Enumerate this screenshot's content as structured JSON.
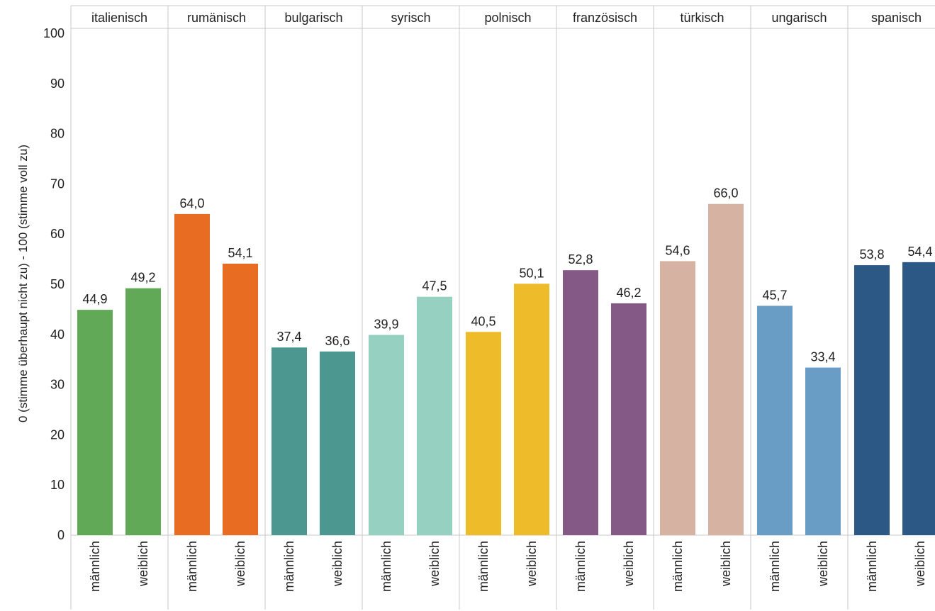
{
  "chart_data": {
    "type": "bar",
    "ylabel": "0 (stimme überhaupt nicht zu) - 100 (stimme voll zu)",
    "xlabel": "",
    "ylim": [
      0,
      100
    ],
    "yticks": [
      0,
      10,
      20,
      30,
      40,
      50,
      60,
      70,
      80,
      90,
      100
    ],
    "grid": false,
    "legend": "none",
    "subcategories": [
      "männlich",
      "weiblich"
    ],
    "groups": [
      {
        "name": "italienisch",
        "color": "#62A957",
        "values": [
          44.9,
          49.2
        ],
        "labels": [
          "44,9",
          "49,2"
        ]
      },
      {
        "name": "rumänisch",
        "color": "#E96C23",
        "values": [
          64.0,
          54.1
        ],
        "labels": [
          "64,0",
          "54,1"
        ]
      },
      {
        "name": "bulgarisch",
        "color": "#4C9890",
        "values": [
          37.4,
          36.6
        ],
        "labels": [
          "37,4",
          "36,6"
        ]
      },
      {
        "name": "syrisch",
        "color": "#95D0C0",
        "values": [
          39.9,
          47.5
        ],
        "labels": [
          "39,9",
          "47,5"
        ]
      },
      {
        "name": "polnisch",
        "color": "#EEBB2A",
        "values": [
          40.5,
          50.1
        ],
        "labels": [
          "40,5",
          "50,1"
        ]
      },
      {
        "name": "französisch",
        "color": "#845985",
        "values": [
          52.8,
          46.2
        ],
        "labels": [
          "52,8",
          "46,2"
        ]
      },
      {
        "name": "türkisch",
        "color": "#D5B2A2",
        "values": [
          54.6,
          66.0
        ],
        "labels": [
          "54,6",
          "66,0"
        ]
      },
      {
        "name": "ungarisch",
        "color": "#6A9DC6",
        "values": [
          45.7,
          33.4
        ],
        "labels": [
          "45,7",
          "33,4"
        ]
      },
      {
        "name": "spanisch",
        "color": "#2C5885",
        "values": [
          53.8,
          54.4
        ],
        "labels": [
          "53,8",
          "54,4"
        ]
      }
    ]
  }
}
